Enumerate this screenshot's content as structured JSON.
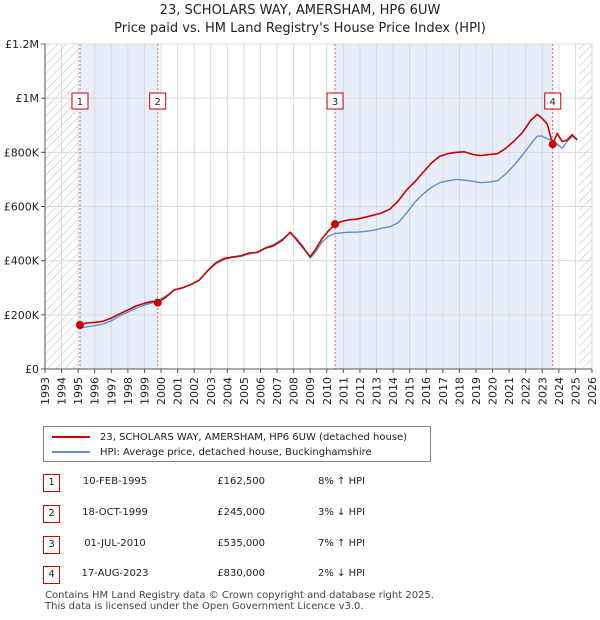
{
  "title_line1": "23, SCHOLARS WAY, AMERSHAM, HP6 6UW",
  "title_line2": "Price paid vs. HM Land Registry's House Price Index (HPI)",
  "legend": {
    "property": "23, SCHOLARS WAY, AMERSHAM, HP6 6UW (detached house)",
    "hpi": "HPI: Average price, detached house, Buckinghamshire"
  },
  "colors": {
    "property": "#cc0000",
    "hpi": "#5b8fcc",
    "shade": "#e8eef9",
    "grid": "#d9d9d9",
    "hatch": "#bbbbbb",
    "marker_line": "#e06666"
  },
  "sales": [
    {
      "num": "1",
      "date": "10-FEB-1995",
      "price": "£162,500",
      "hpi": "8% ↑ HPI"
    },
    {
      "num": "2",
      "date": "18-OCT-1999",
      "price": "£245,000",
      "hpi": "3% ↓ HPI"
    },
    {
      "num": "3",
      "date": "01-JUL-2010",
      "price": "£535,000",
      "hpi": "7% ↑ HPI"
    },
    {
      "num": "4",
      "date": "17-AUG-2023",
      "price": "£830,000",
      "hpi": "2% ↓ HPI"
    }
  ],
  "footer": {
    "line1": "Contains HM Land Registry data © Crown copyright and database right 2025.",
    "line2": "This data is licensed under the Open Government Licence v3.0."
  },
  "chart_data": {
    "type": "line",
    "title": "Price paid vs. HM Land Registry's House Price Index (HPI)",
    "xlabel": "",
    "ylabel": "",
    "xlim": [
      1993,
      2026
    ],
    "ylim": [
      0,
      1200000
    ],
    "grid": true,
    "y_ticks": [
      {
        "value": 0,
        "label": "£0"
      },
      {
        "value": 200000,
        "label": "£200K"
      },
      {
        "value": 400000,
        "label": "£400K"
      },
      {
        "value": 600000,
        "label": "£600K"
      },
      {
        "value": 800000,
        "label": "£800K"
      },
      {
        "value": 1000000,
        "label": "£1M"
      },
      {
        "value": 1200000,
        "label": "£1.2M"
      }
    ],
    "x_ticks": [
      1993,
      1994,
      1995,
      1996,
      1997,
      1998,
      1999,
      2000,
      2001,
      2002,
      2003,
      2004,
      2005,
      2006,
      2007,
      2008,
      2009,
      2010,
      2011,
      2012,
      2013,
      2014,
      2015,
      2016,
      2017,
      2018,
      2019,
      2020,
      2021,
      2022,
      2023,
      2024,
      2025,
      2026
    ],
    "hatched_ranges": [
      [
        1993,
        1995.11
      ],
      [
        2025.2,
        2026
      ]
    ],
    "shaded_ranges": [
      [
        1995.11,
        1999.8
      ],
      [
        2010.5,
        2023.63
      ]
    ],
    "series": [
      {
        "name": "23, SCHOLARS WAY, AMERSHAM, HP6 6UW (detached house)",
        "x": [
          1995.11,
          1995.5,
          1996,
          1996.5,
          1997,
          1997.5,
          1998,
          1998.5,
          1999,
          1999.5,
          1999.8,
          2000.3,
          2000.8,
          2001.3,
          2001.8,
          2002.3,
          2002.8,
          2003.3,
          2003.8,
          2004.3,
          2004.8,
          2005.3,
          2005.8,
          2006.3,
          2006.8,
          2007.3,
          2007.8,
          2008.2,
          2008.6,
          2009.0,
          2009.3,
          2009.7,
          2010.1,
          2010.5,
          2010.9,
          2011.3,
          2011.8,
          2012.3,
          2012.8,
          2013.3,
          2013.8,
          2014.3,
          2014.8,
          2015.3,
          2015.8,
          2016.3,
          2016.8,
          2017.3,
          2017.8,
          2018.3,
          2018.8,
          2019.3,
          2019.8,
          2020.3,
          2020.8,
          2021.3,
          2021.8,
          2022.3,
          2022.7,
          2023.0,
          2023.3,
          2023.63,
          2023.9,
          2024.2,
          2024.5,
          2024.8,
          2025.1
        ],
        "values": [
          162500,
          170000,
          172000,
          176000,
          188000,
          204000,
          218000,
          233000,
          243000,
          250000,
          245000,
          265000,
          292000,
          300000,
          312000,
          328000,
          362000,
          392000,
          408000,
          413000,
          418000,
          428000,
          430000,
          446000,
          455000,
          475000,
          505000,
          475000,
          445000,
          415000,
          440000,
          480000,
          510000,
          535000,
          545000,
          550000,
          553000,
          560000,
          568000,
          576000,
          590000,
          620000,
          660000,
          690000,
          725000,
          760000,
          785000,
          795000,
          800000,
          802000,
          792000,
          788000,
          792000,
          795000,
          815000,
          842000,
          873000,
          918000,
          940000,
          925000,
          905000,
          830000,
          870000,
          840000,
          845000,
          865000,
          845000
        ]
      },
      {
        "name": "HPI: Average price, detached house, Buckinghamshire",
        "x": [
          1995.11,
          1995.5,
          1996,
          1996.5,
          1997,
          1997.5,
          1998,
          1998.5,
          1999,
          1999.5,
          1999.8,
          2000.3,
          2000.8,
          2001.3,
          2001.8,
          2002.3,
          2002.8,
          2003.3,
          2003.8,
          2004.3,
          2004.8,
          2005.3,
          2005.8,
          2006.3,
          2006.8,
          2007.3,
          2007.8,
          2008.2,
          2008.6,
          2009.0,
          2009.3,
          2009.7,
          2010.1,
          2010.5,
          2010.9,
          2011.3,
          2011.8,
          2012.3,
          2012.8,
          2013.3,
          2013.8,
          2014.3,
          2014.8,
          2015.3,
          2015.8,
          2016.3,
          2016.8,
          2017.3,
          2017.8,
          2018.3,
          2018.8,
          2019.3,
          2019.8,
          2020.3,
          2020.8,
          2021.3,
          2021.8,
          2022.3,
          2022.7,
          2023.0,
          2023.3,
          2023.63,
          2023.9,
          2024.2,
          2024.5,
          2024.8,
          2025.1
        ],
        "values": [
          150000,
          156000,
          160000,
          166000,
          178000,
          196000,
          210000,
          225000,
          236000,
          245000,
          252000,
          270000,
          292000,
          300000,
          312000,
          328000,
          362000,
          388000,
          404000,
          412000,
          415000,
          425000,
          432000,
          448000,
          460000,
          478000,
          503000,
          480000,
          450000,
          410000,
          430000,
          468000,
          490000,
          500000,
          503000,
          505000,
          505000,
          508000,
          512000,
          520000,
          525000,
          540000,
          575000,
          615000,
          645000,
          670000,
          688000,
          695000,
          700000,
          698000,
          693000,
          688000,
          690000,
          695000,
          720000,
          752000,
          790000,
          830000,
          860000,
          860000,
          850000,
          845000,
          830000,
          815000,
          840000,
          858000,
          850000
        ]
      }
    ],
    "sale_points": [
      {
        "label": "1",
        "x": 1995.11,
        "y": 162500
      },
      {
        "label": "2",
        "x": 1999.8,
        "y": 245000
      },
      {
        "label": "3",
        "x": 2010.5,
        "y": 535000
      },
      {
        "label": "4",
        "x": 2023.63,
        "y": 830000
      }
    ]
  }
}
